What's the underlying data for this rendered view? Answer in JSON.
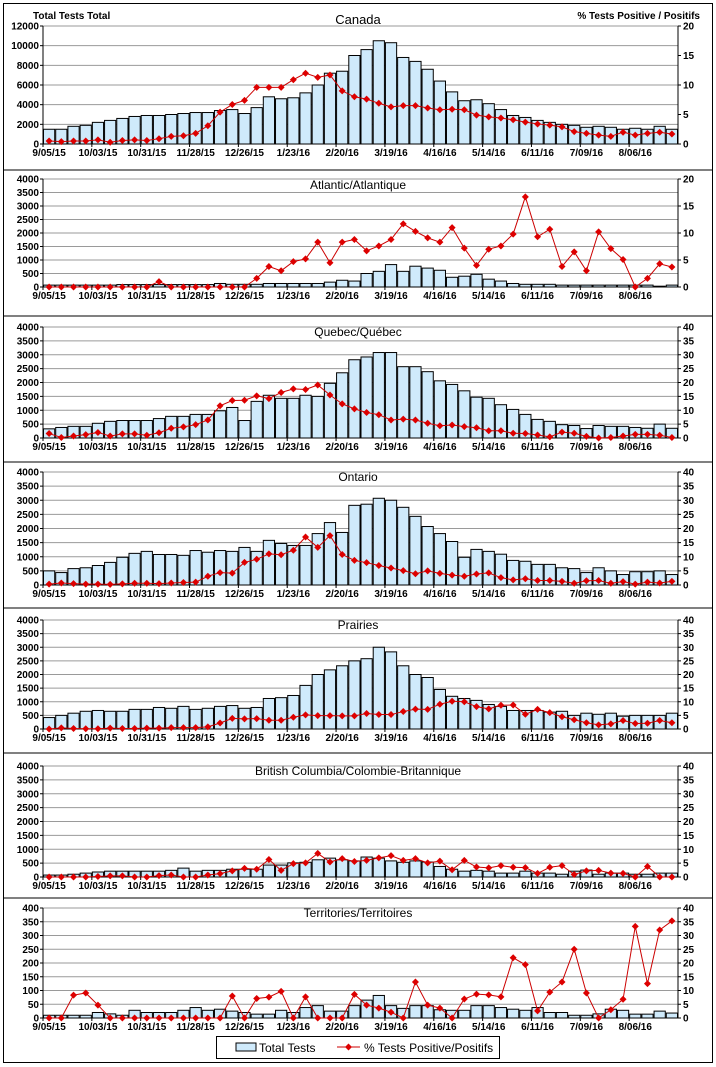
{
  "header": {
    "left_axis_title": "Total Tests Total",
    "right_axis_title": "% Tests Positive / Positifs"
  },
  "legend": {
    "bars_label": "Total Tests",
    "line_label": "% Tests Positive/Positifs"
  },
  "colors": {
    "bar_fill": "#cfeafb",
    "bar_stroke": "#000000",
    "line": "#cc0000",
    "grid": "#9a9a9a"
  },
  "chart_data": [
    {
      "type": "bar+line",
      "title": "Canada",
      "xticks": [
        "9/05/15",
        "10/03/15",
        "10/31/15",
        "11/28/15",
        "12/26/15",
        "1/23/16",
        "2/20/16",
        "3/19/16",
        "4/16/16",
        "5/14/16",
        "6/11/16",
        "7/09/16",
        "8/06/16"
      ],
      "ylim": [
        0,
        12000
      ],
      "yticks": [
        0,
        2000,
        4000,
        6000,
        8000,
        10000,
        12000
      ],
      "y2lim": [
        0,
        20
      ],
      "y2ticks": [
        0,
        5,
        10,
        15,
        20
      ],
      "tests": [
        1500,
        1500,
        1800,
        1900,
        2200,
        2400,
        2600,
        2800,
        2900,
        2900,
        3000,
        3100,
        3200,
        3200,
        3400,
        3500,
        3100,
        3700,
        4800,
        4600,
        4700,
        5200,
        6000,
        7200,
        7400,
        9000,
        9600,
        10500,
        10300,
        8800,
        8400,
        7600,
        6400,
        5300,
        4400,
        4500,
        4100,
        3500,
        2900,
        2700,
        2400,
        2200,
        2000,
        1900,
        1700,
        1800,
        1700,
        1500,
        1600,
        1500,
        1800,
        1500
      ],
      "pct_positive": [
        0.5,
        0.4,
        0.5,
        0.5,
        0.7,
        0.3,
        0.6,
        0.7,
        0.6,
        0.9,
        1.3,
        1.4,
        1.8,
        3.1,
        5.4,
        6.7,
        7.4,
        9.6,
        9.6,
        9.6,
        10.9,
        12.0,
        11.3,
        11.7,
        9.0,
        8.0,
        7.6,
        6.9,
        6.3,
        6.5,
        6.5,
        6.1,
        5.8,
        5.9,
        5.8,
        4.9,
        4.6,
        4.4,
        4.1,
        3.7,
        3.4,
        3.2,
        2.9,
        2.1,
        1.8,
        1.5,
        1.3,
        2.0,
        1.5,
        1.8,
        2.0,
        1.7
      ]
    },
    {
      "type": "bar+line",
      "title": "Atlantic/Atlantique",
      "xticks": [
        "9/05/15",
        "10/03/15",
        "10/31/15",
        "11/28/15",
        "12/26/15",
        "1/23/16",
        "2/20/16",
        "3/19/16",
        "4/16/16",
        "5/14/16",
        "6/11/16",
        "7/09/16",
        "8/06/16"
      ],
      "ylim": [
        0,
        4000
      ],
      "yticks": [
        0,
        500,
        1000,
        1500,
        2000,
        2500,
        3000,
        3500,
        4000
      ],
      "y2lim": [
        0,
        20
      ],
      "y2ticks": [
        0,
        5,
        10,
        15,
        20
      ],
      "tests": [
        70,
        70,
        70,
        70,
        70,
        70,
        90,
        90,
        90,
        90,
        90,
        90,
        90,
        90,
        130,
        100,
        100,
        100,
        130,
        130,
        130,
        130,
        130,
        180,
        250,
        220,
        500,
        580,
        830,
        580,
        770,
        700,
        620,
        360,
        400,
        470,
        290,
        220,
        130,
        100,
        100,
        100,
        70,
        70,
        70,
        70,
        70,
        70,
        70,
        70,
        30,
        70
      ],
      "pct_positive": [
        0,
        0,
        0,
        0,
        0,
        0,
        0,
        0,
        0,
        1.0,
        0,
        0,
        0,
        0,
        0,
        0,
        0,
        1.6,
        3.8,
        3.0,
        4.7,
        5.2,
        8.3,
        4.5,
        8.3,
        8.8,
        6.7,
        7.6,
        8.8,
        11.7,
        10.3,
        9.1,
        8.3,
        11.0,
        7.2,
        4.0,
        7.0,
        7.6,
        9.8,
        16.7,
        9.3,
        10.7,
        3.8,
        6.5,
        3.0,
        10.2,
        7.1,
        5.1,
        0,
        1.6,
        4.3,
        3.7
      ]
    },
    {
      "type": "bar+line",
      "title": "Quebec/Québec",
      "xticks": [
        "9/05/15",
        "10/03/15",
        "10/31/15",
        "11/28/15",
        "12/26/15",
        "1/23/16",
        "2/20/16",
        "3/19/16",
        "4/16/16",
        "5/14/16",
        "6/11/16",
        "7/09/16",
        "8/06/16"
      ],
      "ylim": [
        0,
        4000
      ],
      "yticks": [
        0,
        500,
        1000,
        1500,
        2000,
        2500,
        3000,
        3500,
        4000
      ],
      "y2lim": [
        0,
        40
      ],
      "y2ticks": [
        0,
        5,
        10,
        15,
        20,
        25,
        30,
        35,
        40
      ],
      "tests": [
        330,
        380,
        420,
        420,
        530,
        600,
        630,
        630,
        630,
        700,
        780,
        780,
        850,
        850,
        980,
        1100,
        630,
        1320,
        1540,
        1430,
        1430,
        1540,
        1500,
        1970,
        2350,
        2820,
        2920,
        3080,
        3080,
        2570,
        2570,
        2390,
        2060,
        1930,
        1700,
        1470,
        1430,
        1200,
        1030,
        850,
        670,
        600,
        480,
        450,
        340,
        450,
        420,
        420,
        380,
        350,
        500,
        350
      ],
      "pct_positive": [
        1.6,
        0.2,
        0.7,
        1.2,
        2.0,
        0.7,
        1.5,
        1.5,
        1.0,
        1.9,
        3.5,
        4.0,
        4.8,
        6.5,
        11.6,
        13.5,
        13.6,
        15.2,
        14.2,
        16.4,
        17.7,
        17.5,
        19.1,
        15.5,
        12.3,
        10.5,
        9.2,
        8.4,
        6.5,
        6.8,
        6.5,
        5.3,
        4.4,
        4.7,
        4.1,
        3.7,
        2.6,
        2.6,
        1.7,
        1.6,
        1.1,
        0.4,
        2.1,
        1.7,
        0.6,
        0,
        0.2,
        0.7,
        1.3,
        1.3,
        1.0,
        0.2
      ]
    },
    {
      "type": "bar+line",
      "title": "Ontario",
      "xticks": [
        "9/05/15",
        "10/03/15",
        "10/31/15",
        "11/28/15",
        "12/26/15",
        "1/23/16",
        "2/20/16",
        "3/19/16",
        "4/16/16",
        "5/14/16",
        "6/11/16",
        "7/09/16",
        "8/06/16"
      ],
      "ylim": [
        0,
        4000
      ],
      "yticks": [
        0,
        500,
        1000,
        1500,
        2000,
        2500,
        3000,
        3500,
        4000
      ],
      "y2lim": [
        0,
        40
      ],
      "y2ticks": [
        0,
        5,
        10,
        15,
        20,
        25,
        30,
        35,
        40
      ],
      "tests": [
        500,
        440,
        580,
        610,
        690,
        800,
        980,
        1120,
        1190,
        1080,
        1080,
        1050,
        1220,
        1160,
        1220,
        1190,
        1330,
        1190,
        1580,
        1470,
        1400,
        1400,
        1820,
        2210,
        1860,
        2820,
        2860,
        3070,
        3000,
        2750,
        2430,
        2070,
        1820,
        1540,
        980,
        1260,
        1190,
        1090,
        870,
        840,
        730,
        730,
        610,
        580,
        440,
        610,
        500,
        370,
        470,
        470,
        500,
        370
      ],
      "pct_positive": [
        0.3,
        0.7,
        0.5,
        0.3,
        0.3,
        0.2,
        0.4,
        0.6,
        0.6,
        0.5,
        0.7,
        0.9,
        1.0,
        3.1,
        4.4,
        4.2,
        8.0,
        9.1,
        11.0,
        10.7,
        12.3,
        17.0,
        13.3,
        17.5,
        10.8,
        8.7,
        7.9,
        6.9,
        6.0,
        5.1,
        4.0,
        5.0,
        4.1,
        3.5,
        3.1,
        3.9,
        4.3,
        2.6,
        1.8,
        2.2,
        1.6,
        1.6,
        1.3,
        0.6,
        1.5,
        1.6,
        0.6,
        1.2,
        0.3,
        1.0,
        0.7,
        1.3
      ]
    },
    {
      "type": "bar+line",
      "title": "Prairies",
      "xticks": [
        "9/05/15",
        "10/03/15",
        "10/31/15",
        "11/28/15",
        "12/26/15",
        "1/23/16",
        "2/20/16",
        "3/19/16",
        "4/16/16",
        "5/14/16",
        "6/11/16",
        "7/09/16",
        "8/06/16"
      ],
      "ylim": [
        0,
        4000
      ],
      "yticks": [
        0,
        500,
        1000,
        1500,
        2000,
        2500,
        3000,
        3500,
        4000
      ],
      "y2lim": [
        0,
        40
      ],
      "y2ticks": [
        0,
        5,
        10,
        15,
        20,
        25,
        30,
        35,
        40
      ],
      "tests": [
        420,
        500,
        580,
        650,
        680,
        650,
        650,
        720,
        720,
        790,
        760,
        830,
        720,
        760,
        830,
        860,
        760,
        790,
        1120,
        1150,
        1230,
        1600,
        2000,
        2170,
        2320,
        2500,
        2580,
        3000,
        2830,
        2320,
        2000,
        1890,
        1450,
        1200,
        1120,
        1050,
        900,
        830,
        680,
        680,
        680,
        620,
        650,
        500,
        580,
        540,
        580,
        470,
        500,
        500,
        500,
        580
      ],
      "pct_positive": [
        0,
        0.4,
        0.2,
        0.1,
        0.1,
        0.3,
        0.2,
        0.2,
        0.3,
        0.3,
        0.5,
        0.5,
        0.5,
        0.8,
        2.2,
        3.9,
        3.7,
        3.8,
        3.2,
        3.2,
        4.3,
        5.2,
        4.9,
        4.9,
        4.8,
        4.8,
        5.7,
        5.3,
        5.3,
        6.4,
        7.3,
        7.2,
        9.1,
        10.2,
        10.0,
        8.2,
        7.4,
        8.7,
        8.8,
        5.4,
        7.2,
        6.0,
        4.5,
        3.4,
        2.3,
        1.5,
        1.9,
        3.1,
        2.0,
        2.1,
        3.1,
        2.3
      ]
    },
    {
      "type": "bar+line",
      "title": "British Columbia/Colombie-Britannique",
      "xticks": [
        "9/05/15",
        "10/03/15",
        "10/31/15",
        "11/28/15",
        "12/26/15",
        "1/23/16",
        "2/20/16",
        "3/19/16",
        "4/16/16",
        "5/14/16",
        "6/11/16",
        "7/09/16",
        "8/06/16"
      ],
      "ylim": [
        0,
        4000
      ],
      "yticks": [
        0,
        500,
        1000,
        1500,
        2000,
        2500,
        3000,
        3500,
        4000
      ],
      "y2lim": [
        0,
        40
      ],
      "y2ticks": [
        0,
        5,
        10,
        15,
        20,
        25,
        30,
        35,
        40
      ],
      "tests": [
        70,
        70,
        100,
        140,
        180,
        210,
        210,
        210,
        210,
        210,
        240,
        320,
        210,
        240,
        240,
        280,
        280,
        280,
        430,
        430,
        510,
        530,
        620,
        680,
        620,
        580,
        720,
        680,
        580,
        530,
        580,
        540,
        380,
        280,
        210,
        240,
        210,
        140,
        140,
        210,
        140,
        140,
        100,
        210,
        250,
        100,
        140,
        140,
        100,
        100,
        140,
        140
      ],
      "pct_positive": [
        0,
        0,
        0,
        0,
        0.2,
        0.4,
        0.4,
        0,
        0,
        0.5,
        0.7,
        0,
        0,
        0.7,
        1.2,
        2.2,
        3.1,
        2.8,
        6.3,
        2.4,
        4.8,
        5.1,
        8.5,
        5.4,
        6.6,
        5.6,
        6.0,
        6.9,
        7.7,
        6.0,
        6.6,
        5.1,
        5.7,
        2.6,
        6.0,
        3.6,
        3.3,
        4.1,
        3.5,
        3.4,
        1.3,
        3.5,
        4.1,
        0.9,
        2.2,
        2.4,
        1.4,
        1.3,
        0,
        3.8,
        0,
        0
      ]
    },
    {
      "type": "bar+line",
      "title": "Territories/Territoires",
      "xticks": [
        "9/05/15",
        "10/03/15",
        "10/31/15",
        "11/28/15",
        "12/26/15",
        "1/23/16",
        "2/20/16",
        "3/19/16",
        "4/16/16",
        "5/14/16",
        "6/11/16",
        "7/09/16",
        "8/06/16"
      ],
      "ylim": [
        0,
        400
      ],
      "yticks": [
        0,
        50,
        100,
        150,
        200,
        250,
        300,
        350,
        400
      ],
      "y2lim": [
        0,
        40
      ],
      "y2ticks": [
        0,
        5,
        10,
        15,
        20,
        25,
        30,
        35,
        40
      ],
      "tests": [
        10,
        10,
        10,
        10,
        20,
        15,
        10,
        28,
        20,
        20,
        20,
        28,
        38,
        28,
        32,
        25,
        20,
        14,
        14,
        28,
        20,
        38,
        45,
        25,
        25,
        45,
        65,
        82,
        45,
        35,
        45,
        45,
        30,
        28,
        28,
        45,
        45,
        38,
        32,
        28,
        38,
        20,
        20,
        10,
        10,
        15,
        32,
        28,
        14,
        14,
        25,
        18
      ],
      "pct_positive": [
        0,
        0,
        8.3,
        9.1,
        4.7,
        0,
        0,
        0,
        0,
        0,
        0,
        0,
        0,
        0,
        0,
        8.0,
        0,
        7.1,
        7.6,
        9.7,
        0,
        7.7,
        0,
        0,
        0,
        8.6,
        4.7,
        3.6,
        2.1,
        0,
        13.1,
        4.7,
        3.6,
        0,
        6.9,
        8.7,
        8.4,
        7.7,
        21.9,
        19.4,
        2.6,
        9.4,
        13.1,
        25.0,
        9.1,
        0,
        3.0,
        6.8,
        33.3,
        12.5,
        32.0,
        35.3
      ]
    }
  ]
}
